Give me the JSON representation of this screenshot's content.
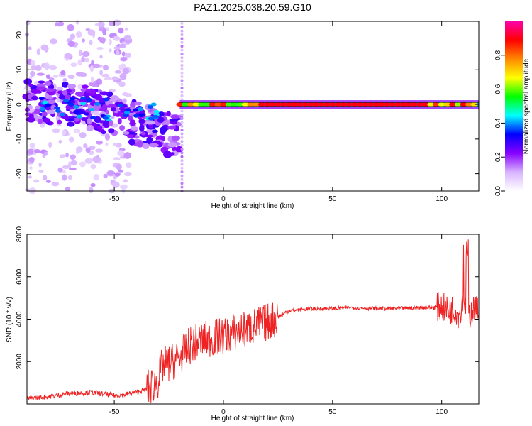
{
  "title": "PAZ1.2025.038.20.59.G10",
  "chart_data": [
    {
      "type": "heatmap",
      "name": "spectrogram",
      "xlabel": "Height of straight line (km)",
      "ylabel": "Frequency (Hz)",
      "xlim": [
        -90,
        117
      ],
      "ylim": [
        -25,
        24
      ],
      "x_ticks": [
        -50,
        0,
        50,
        100
      ],
      "y_ticks": [
        20,
        10,
        0,
        -10,
        -20
      ],
      "colorbar": {
        "label": "Normalized spectral amplitude",
        "range": [
          0,
          1
        ],
        "ticks": [
          0.0,
          0.2,
          0.4,
          0.6,
          0.8
        ],
        "colormap": [
          "#ffffff",
          "#d8b4ff",
          "#8800ff",
          "#0000ff",
          "#00ffff",
          "#00ff00",
          "#ffff00",
          "#ff8800",
          "#ff0000",
          "#ff00aa"
        ]
      },
      "features": {
        "noise_region_x": [
          -90,
          -20
        ],
        "noise_band_center_hz": [
          1,
          -8
        ],
        "carrier_region_x": [
          -20,
          117
        ],
        "carrier_frequency_hz": 0,
        "carrier_peak_amplitude": 1.0,
        "vertical_artifact_x": -19
      }
    },
    {
      "type": "line",
      "name": "snr",
      "xlabel": "Height of straight line (km)",
      "ylabel": "SNR (10 * v/v)",
      "xlim": [
        -90,
        117
      ],
      "ylim": [
        0,
        8000
      ],
      "x_ticks": [
        -50,
        0,
        50,
        100
      ],
      "y_ticks": [
        2000,
        4000,
        6000,
        8000
      ],
      "color": "#ee2222",
      "series": [
        {
          "x": [
            -90,
            -80,
            -70,
            -60,
            -50,
            -45,
            -40,
            -35,
            -30,
            -28,
            -25,
            -20,
            -15,
            -10,
            -5,
            0,
            5,
            10,
            15,
            20,
            25,
            30,
            40,
            50,
            60,
            70,
            80,
            90,
            95,
            100,
            103,
            106,
            108,
            110,
            112,
            114,
            117
          ],
          "values": [
            250,
            350,
            500,
            550,
            400,
            450,
            550,
            700,
            1100,
            1800,
            1900,
            2200,
            2800,
            3000,
            3100,
            3200,
            3400,
            3500,
            3700,
            3850,
            4100,
            4400,
            4500,
            4500,
            4550,
            4500,
            4500,
            4550,
            4550,
            4600,
            4400,
            4500,
            4200,
            5000,
            4000,
            4500,
            4400
          ]
        }
      ]
    }
  ]
}
